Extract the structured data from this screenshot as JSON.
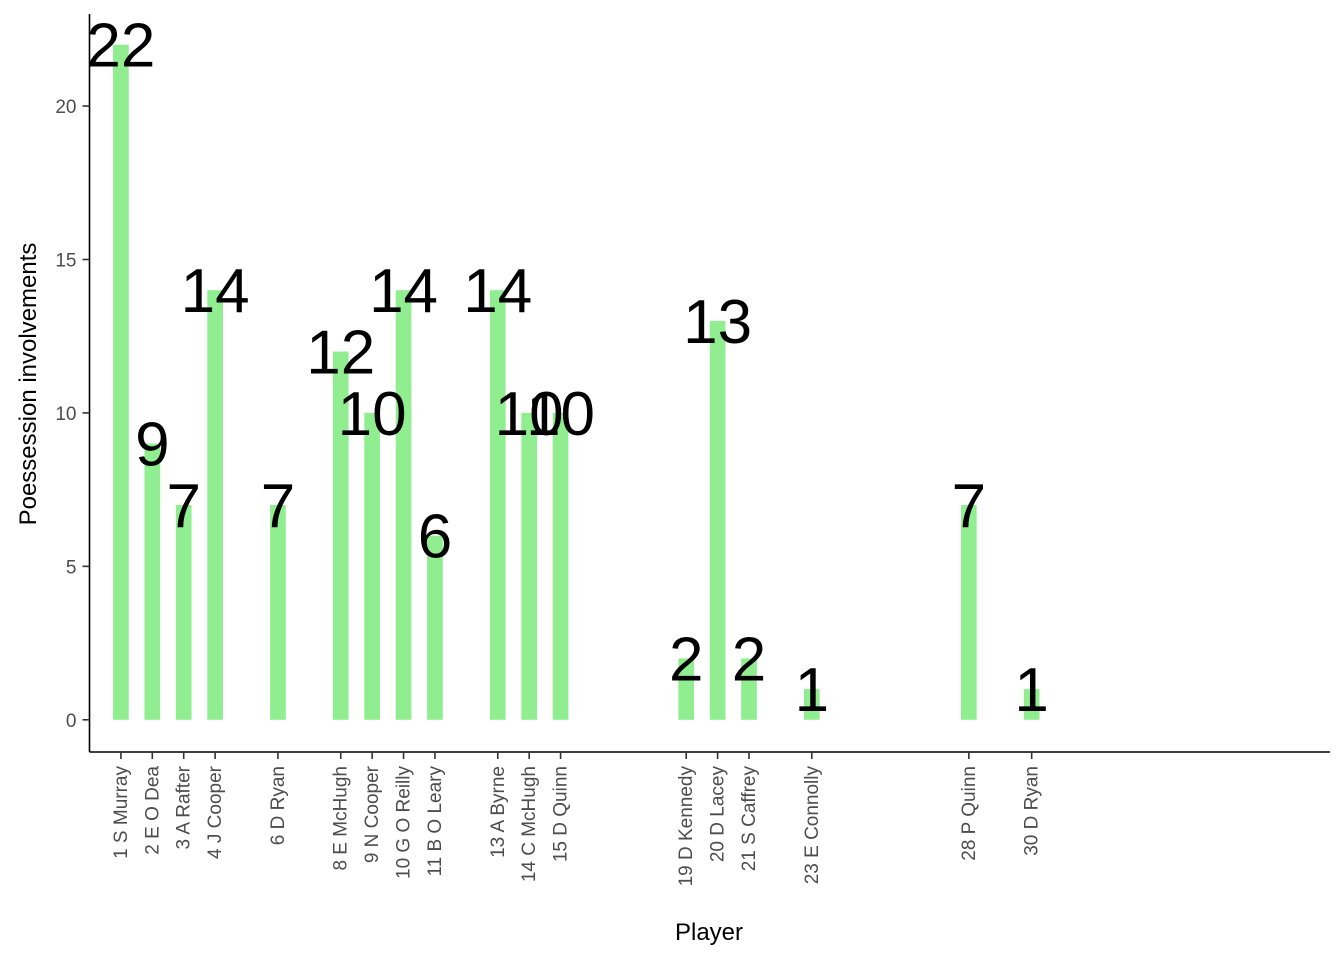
{
  "chart_data": {
    "type": "bar",
    "xlabel": "Player",
    "ylabel": "Poessession involvements",
    "ylim": [
      -1.05,
      23
    ],
    "xlim": [
      0,
      39.5
    ],
    "yticks": [
      0,
      5,
      10,
      15,
      20
    ],
    "bar_color": "#90EE90",
    "grid": false,
    "legend": "none",
    "points": [
      {
        "x": 1,
        "category": "1 S Murray",
        "value": 22
      },
      {
        "x": 2,
        "category": "2 E O Dea",
        "value": 9
      },
      {
        "x": 3,
        "category": "3 A Rafter",
        "value": 7
      },
      {
        "x": 4,
        "category": "4 J Cooper",
        "value": 14
      },
      {
        "x": 6,
        "category": "6 D Ryan",
        "value": 7
      },
      {
        "x": 8,
        "category": "8 E McHugh",
        "value": 12
      },
      {
        "x": 9,
        "category": "9 N Cooper",
        "value": 10
      },
      {
        "x": 10,
        "category": "10 G O Reilly",
        "value": 14
      },
      {
        "x": 11,
        "category": "11 B O Leary",
        "value": 6
      },
      {
        "x": 13,
        "category": "13 A Byrne",
        "value": 14
      },
      {
        "x": 14,
        "category": "14 C McHugh",
        "value": 10
      },
      {
        "x": 15,
        "category": "15 D Quinn",
        "value": 10
      },
      {
        "x": 19,
        "category": "19 D Kennedy",
        "value": 2
      },
      {
        "x": 20,
        "category": "20 D Lacey",
        "value": 13
      },
      {
        "x": 21,
        "category": "21 S Caffrey",
        "value": 2
      },
      {
        "x": 23,
        "category": "23 E Connolly",
        "value": 1
      },
      {
        "x": 28,
        "category": "28 P Quinn",
        "value": 7
      },
      {
        "x": 30,
        "category": "30 D Ryan",
        "value": 1
      }
    ]
  }
}
